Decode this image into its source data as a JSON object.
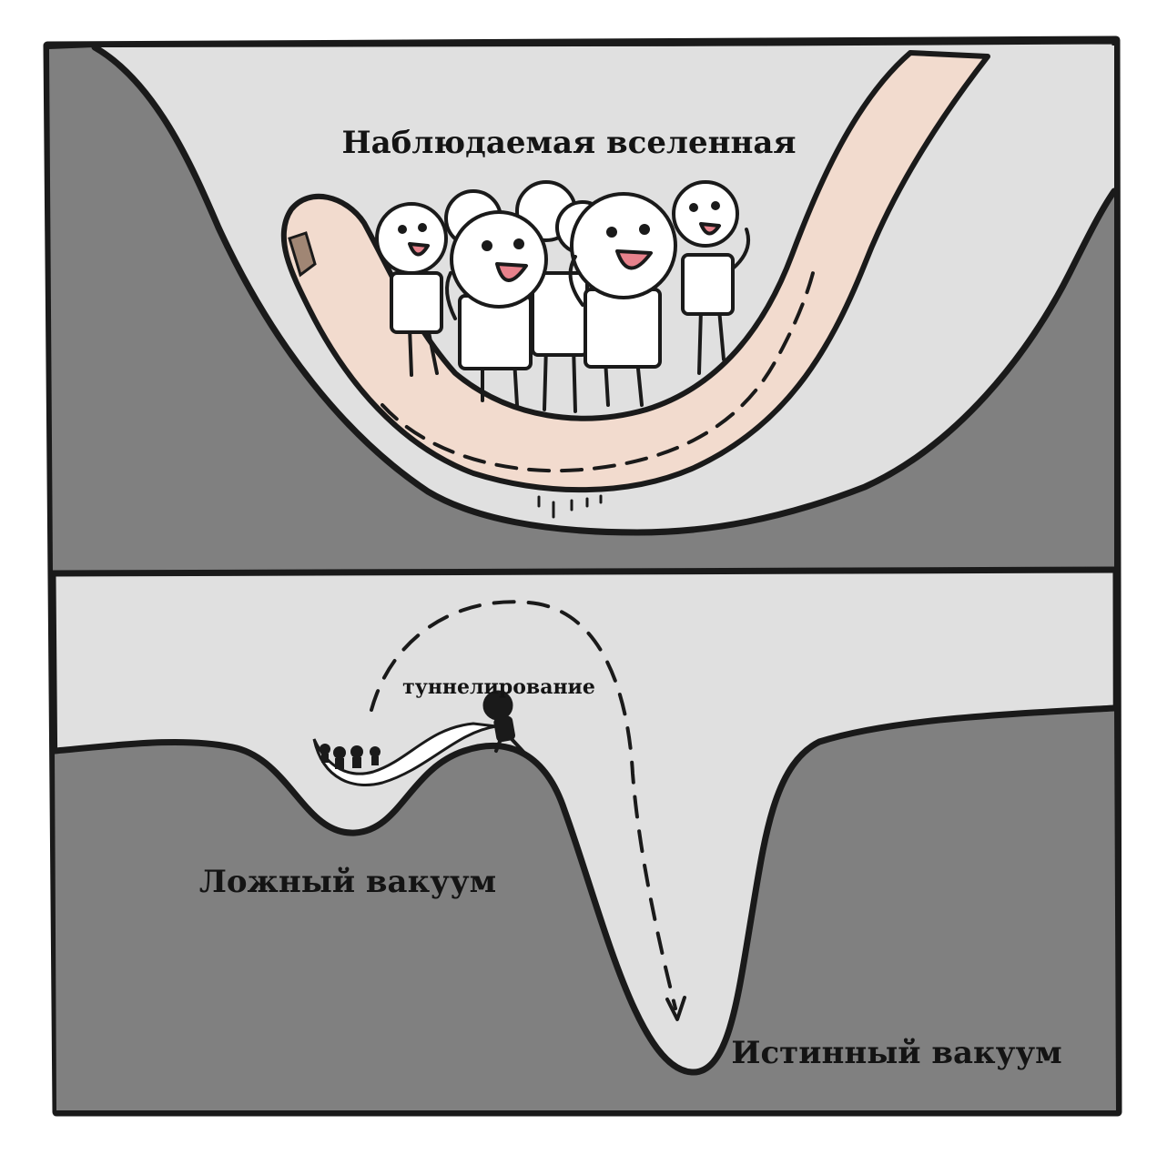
{
  "panels": {
    "top": {
      "label": "Наблюдаемая вселенная"
    },
    "bottom": {
      "arrow_label": "туннелирование",
      "false_vacuum_label": "Ложный вакуум",
      "true_vacuum_label": "Истинный вакуум"
    }
  },
  "colors": {
    "dark_fill": "#808080",
    "light_fill": "#e0e0e0",
    "outline": "#1a1a1a",
    "worm": "#f2dbce",
    "mouth": "#e8828c"
  }
}
